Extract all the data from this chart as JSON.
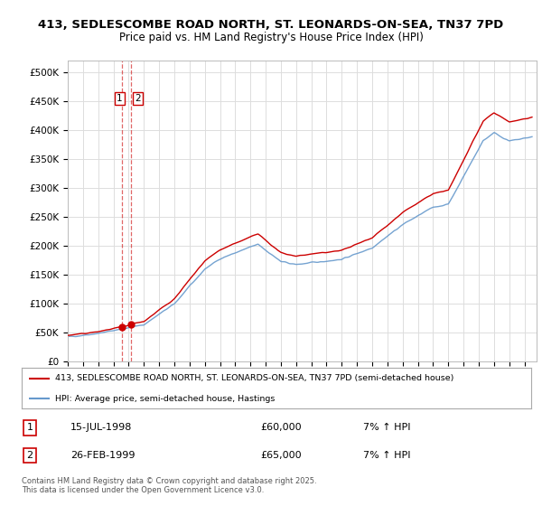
{
  "title_line1": "413, SEDLESCOMBE ROAD NORTH, ST. LEONARDS-ON-SEA, TN37 7PD",
  "title_line2": "Price paid vs. HM Land Registry's House Price Index (HPI)",
  "ytick_values": [
    0,
    50000,
    100000,
    150000,
    200000,
    250000,
    300000,
    350000,
    400000,
    450000,
    500000
  ],
  "ylim": [
    0,
    520000
  ],
  "xlim_start": 1995.0,
  "xlim_end": 2025.8,
  "sale1_date": 1998.538,
  "sale1_price": 60000,
  "sale2_date": 1999.154,
  "sale2_price": 65000,
  "legend_line1": "413, SEDLESCOMBE ROAD NORTH, ST. LEONARDS-ON-SEA, TN37 7PD (semi-detached house)",
  "legend_line2": "HPI: Average price, semi-detached house, Hastings",
  "table_row1": [
    "1",
    "15-JUL-1998",
    "£60,000",
    "7% ↑ HPI"
  ],
  "table_row2": [
    "2",
    "26-FEB-1999",
    "£65,000",
    "7% ↑ HPI"
  ],
  "footer": "Contains HM Land Registry data © Crown copyright and database right 2025.\nThis data is licensed under the Open Government Licence v3.0.",
  "line_color_red": "#cc0000",
  "line_color_blue": "#6699cc",
  "vline_color": "#cc0000",
  "background_color": "#ffffff",
  "grid_color": "#dddddd"
}
